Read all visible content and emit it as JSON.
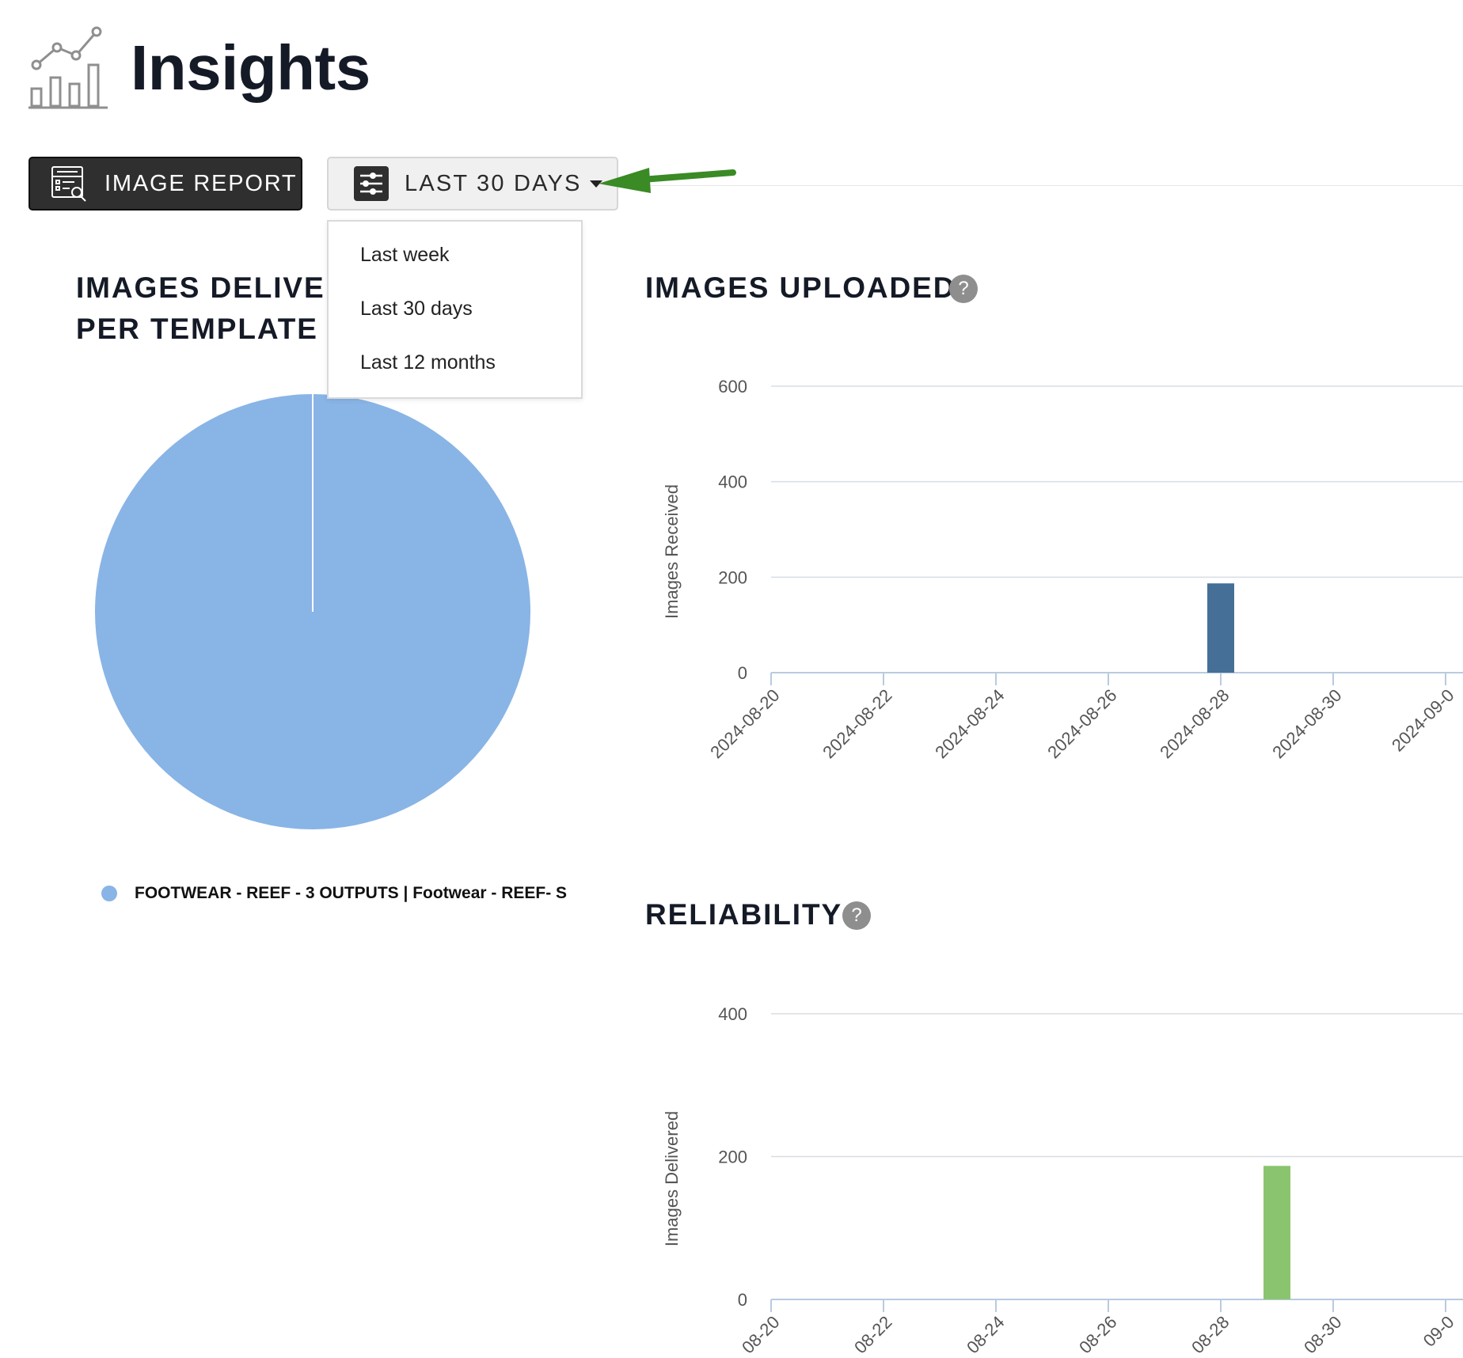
{
  "header": {
    "title": "Insights",
    "icon": "chart-line-bar-icon"
  },
  "toolbar": {
    "image_report_label": "IMAGE REPORT",
    "image_report_icon": "report-search-icon",
    "range_label": "LAST 30 DAYS",
    "range_icon": "sliders-icon"
  },
  "range_menu": {
    "options": [
      "Last week",
      "Last 30 days",
      "Last 12 months"
    ],
    "selected": "Last 30 days"
  },
  "sections": {
    "pie": {
      "title_line1": "IMAGES DELIVER",
      "title_line2": "PER TEMPLATE"
    },
    "uploaded": {
      "title": "IMAGES UPLOADED",
      "help": "?"
    },
    "reliability": {
      "title": "RELIABILITY",
      "help": "?"
    }
  },
  "colors": {
    "pie": "#89b4e6",
    "uploaded_bar": "#456f97",
    "reliability_bar": "#8bc46f",
    "annotation_arrow": "#3a8a25",
    "dark_button": "#2f2f2f"
  },
  "chart_data": [
    {
      "type": "pie",
      "legend": [
        "FOOTWEAR - REEF - 3 OUTPUTS | Footwear - REEF- S"
      ],
      "values": [
        100
      ]
    },
    {
      "type": "bar",
      "ylabel": "Images Received",
      "ylim": [
        0,
        600
      ],
      "yticks": [
        "0",
        "200",
        "400",
        "600"
      ],
      "xticks": [
        "2024-08-20",
        "2024-08-22",
        "2024-08-24",
        "2024-08-26",
        "2024-08-28",
        "2024-08-30",
        "2024-09-0"
      ],
      "bars": [
        {
          "x": "2024-08-28",
          "value": 187
        }
      ]
    },
    {
      "type": "bar",
      "ylabel": "Images Delivered",
      "ylim": [
        0,
        400
      ],
      "yticks": [
        "0",
        "200",
        "400"
      ],
      "xticks": [
        "08-20",
        "08-22",
        "08-24",
        "08-26",
        "08-28",
        "08-30",
        "09-0"
      ],
      "bars": [
        {
          "x": "2024-08-29",
          "value": 187
        }
      ]
    }
  ]
}
